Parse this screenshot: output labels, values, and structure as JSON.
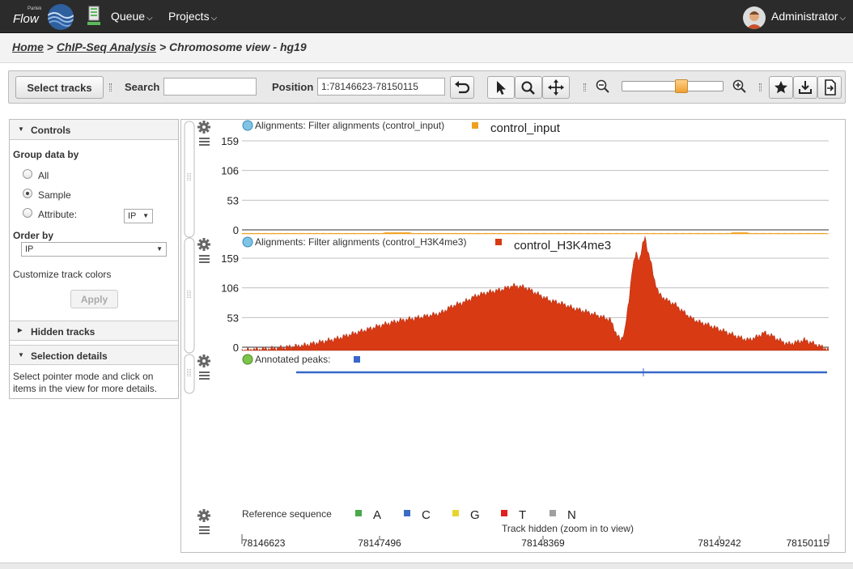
{
  "navbar": {
    "logo_small": "Partek",
    "logo_text": "Flow",
    "queue_label": "Queue",
    "projects_label": "Projects",
    "user_label": "Administrator"
  },
  "breadcrumb": {
    "home": "Home",
    "separator": ">",
    "project": "ChIP-Seq Analysis",
    "current": "Chromosome view - hg19"
  },
  "toolbar": {
    "select_tracks": "Select tracks",
    "search_label": "Search",
    "search_value": "",
    "position_label": "Position",
    "position_value": "1:78146623-78150115",
    "zoom_level": 0.6
  },
  "controls": {
    "title": "Controls",
    "group_by_label": "Group data by",
    "group_options": [
      "All",
      "Sample",
      "Attribute:"
    ],
    "group_selected": "Sample",
    "attribute_value": "IP",
    "order_by_label": "Order by",
    "order_by_value": "IP",
    "customize_colors": "Customize track colors",
    "apply_label": "Apply",
    "hidden_tracks_title": "Hidden tracks",
    "selection_title": "Selection details",
    "selection_hint": "Select pointer mode and click on items in the view for more details."
  },
  "tracks": [
    {
      "title": "Alignments: Filter alignments (control_input)",
      "legend": "control_input",
      "color": "#f0a020",
      "yticks": [
        "159",
        "106",
        "53",
        "0"
      ]
    },
    {
      "title": "Alignments: Filter alignments (control_H3K4me3)",
      "legend": "control_H3K4me3",
      "color": "#d83a14",
      "yticks": [
        "159",
        "106",
        "53",
        "0"
      ]
    },
    {
      "title": "Annotated peaks:",
      "color": "#3868c8"
    }
  ],
  "reference": {
    "label": "Reference sequence",
    "bases": [
      {
        "letter": "A",
        "color": "#4aa84a"
      },
      {
        "letter": "C",
        "color": "#3a6cc4"
      },
      {
        "letter": "G",
        "color": "#e8d430"
      },
      {
        "letter": "T",
        "color": "#e02020"
      },
      {
        "letter": "N",
        "color": "#a0a0a0"
      }
    ],
    "hidden_note": "Track hidden (zoom in to view)",
    "positions": [
      "78146623",
      "78147496",
      "78148369",
      "78149242",
      "78150115"
    ]
  },
  "colors": {
    "navbar_bg": "#2b2b2b",
    "accent_blue": "#3a73b0"
  }
}
